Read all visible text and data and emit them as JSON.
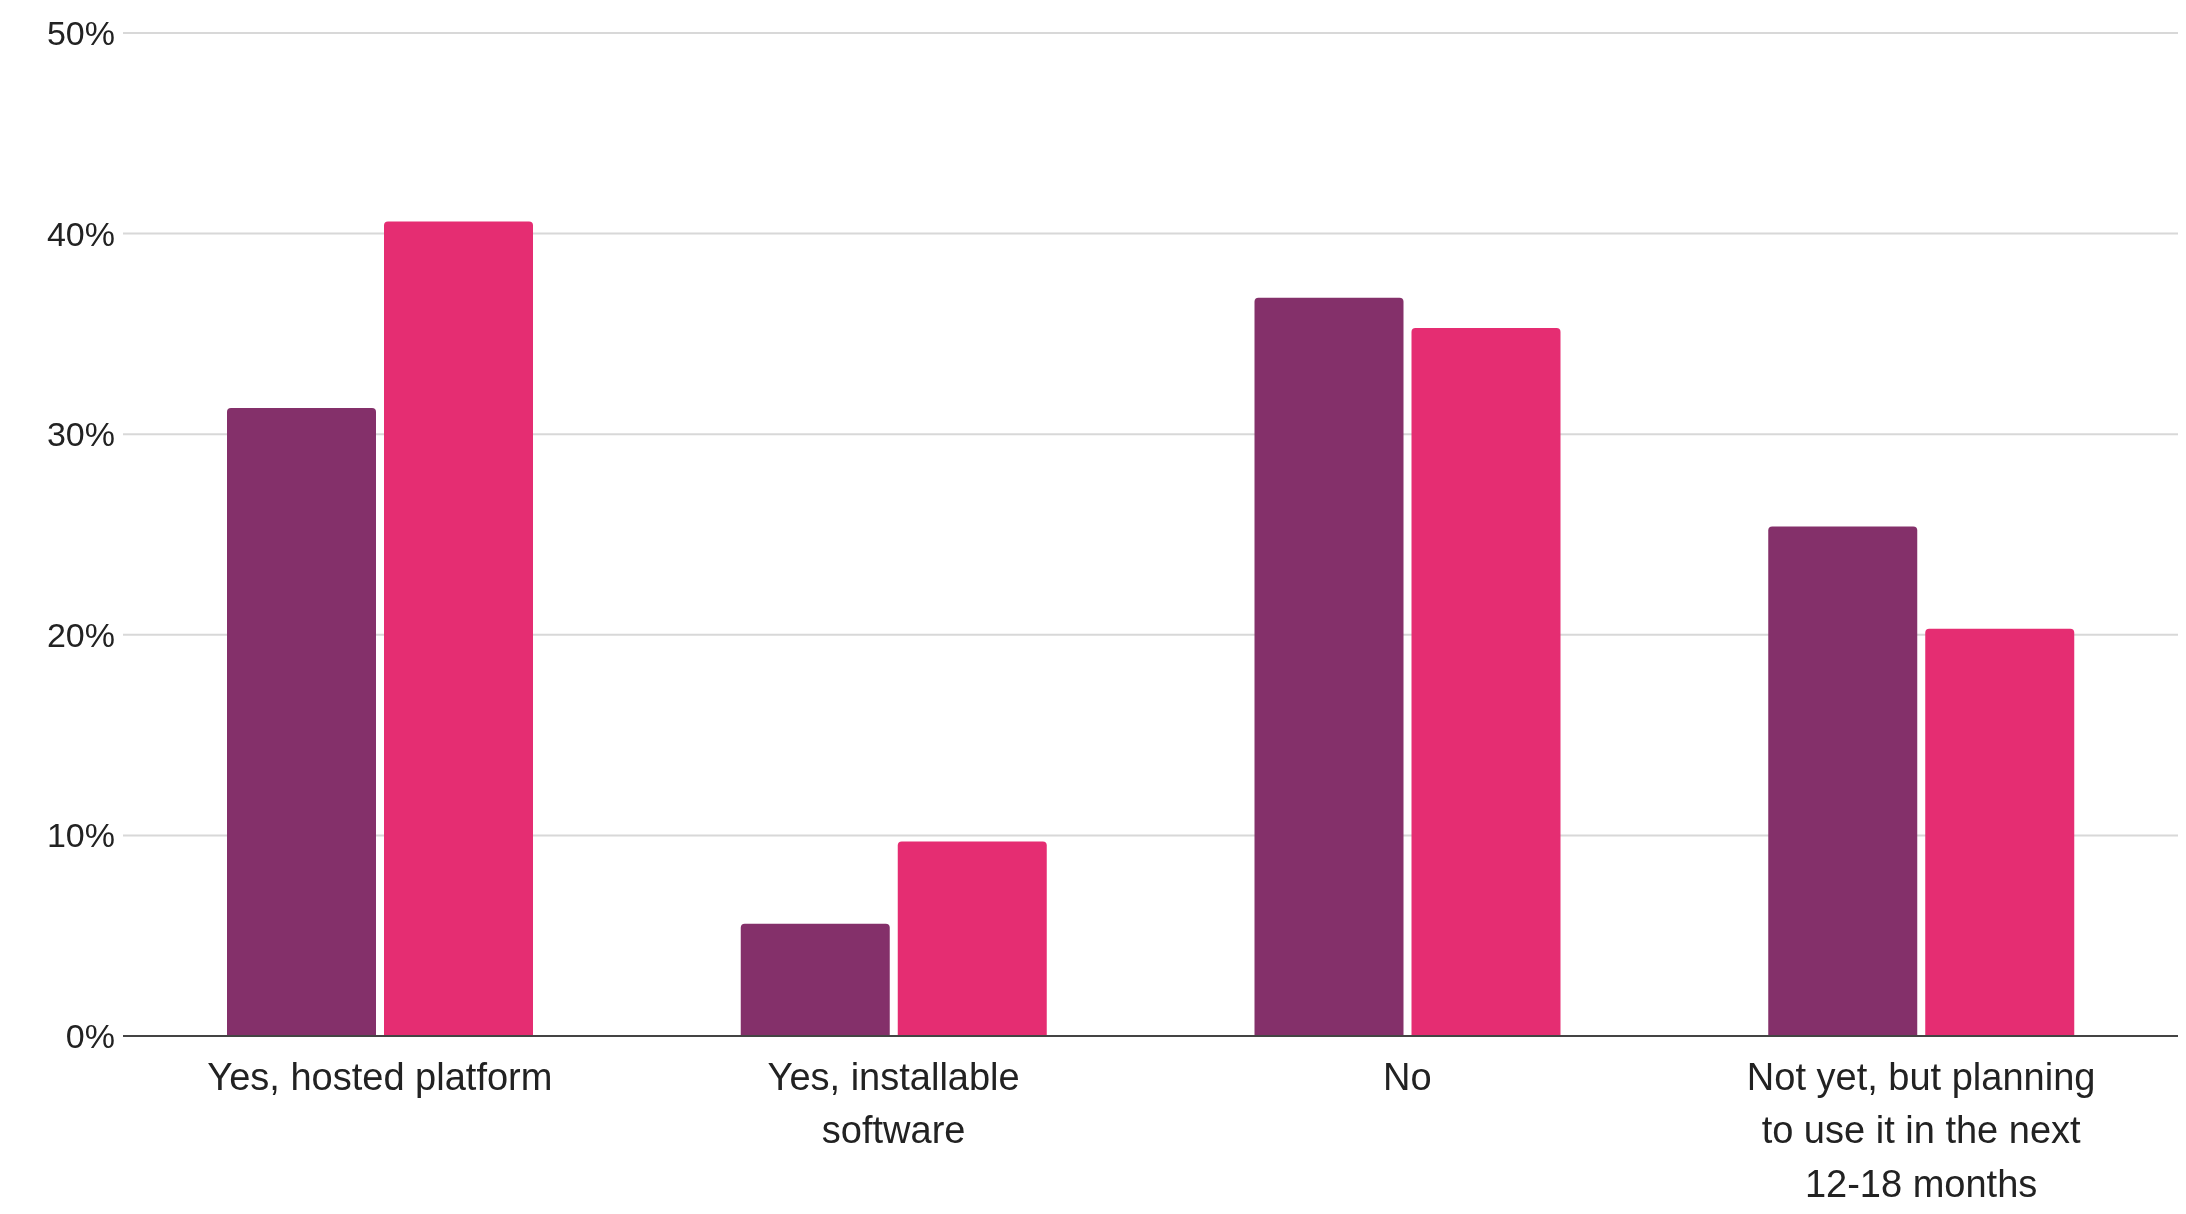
{
  "chart_data": {
    "type": "bar",
    "categories": [
      "Yes, hosted platform",
      "Yes, installable software",
      "No",
      "Not yet, but planning to use it in the next 12-18 months"
    ],
    "series": [
      {
        "color": "#84306a",
        "values": [
          31.3,
          5.6,
          36.8,
          25.4
        ]
      },
      {
        "color": "#e52d72",
        "values": [
          40.6,
          9.7,
          35.3,
          20.3
        ]
      }
    ],
    "ylim": [
      0,
      50
    ],
    "yticks": [
      {
        "value": 0,
        "label": "0%"
      },
      {
        "value": 10,
        "label": "10%"
      },
      {
        "value": 20,
        "label": "20%"
      },
      {
        "value": 30,
        "label": "30%"
      },
      {
        "value": 40,
        "label": "40%"
      },
      {
        "value": 50,
        "label": "50%"
      }
    ],
    "grid": "y"
  }
}
